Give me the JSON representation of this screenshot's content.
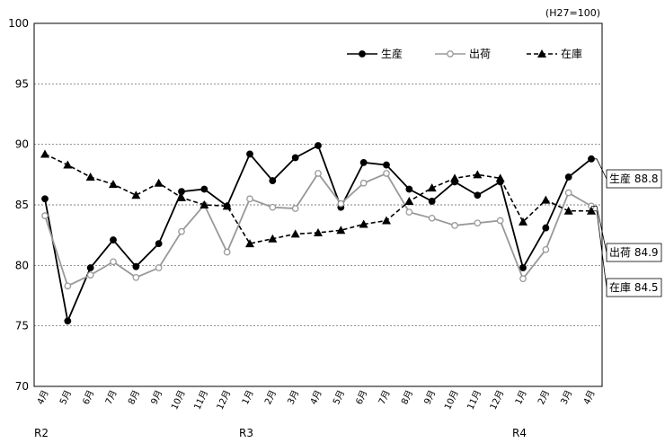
{
  "chart_data": {
    "type": "line",
    "unit_note": "(H27=100)",
    "ylim": [
      70,
      100
    ],
    "yticks": [
      "70",
      "75",
      "80",
      "85",
      "90",
      "95",
      "100"
    ],
    "grid": true,
    "legend_position": "top-right",
    "categories": [
      "4月",
      "5月",
      "6月",
      "7月",
      "8月",
      "9月",
      "10月",
      "11月",
      "12月",
      "1月",
      "2月",
      "3月",
      "4月",
      "5月",
      "6月",
      "7月",
      "8月",
      "9月",
      "10月",
      "11月",
      "12月",
      "1月",
      "2月",
      "3月",
      "4月"
    ],
    "eras": [
      {
        "label": "R2",
        "index": 0
      },
      {
        "label": "R3",
        "index": 9
      },
      {
        "label": "R4",
        "index": 21
      }
    ],
    "series": [
      {
        "name": "生産",
        "color": "#000000",
        "style": "solid",
        "marker": "filled-circle",
        "values": [
          85.5,
          75.4,
          79.8,
          82.1,
          79.9,
          81.8,
          86.1,
          86.3,
          84.9,
          89.2,
          87.0,
          88.9,
          89.9,
          84.8,
          88.5,
          88.3,
          86.3,
          85.3,
          86.9,
          85.8,
          86.9,
          79.8,
          83.1,
          87.3,
          88.8
        ],
        "end_label": "生産 88.8"
      },
      {
        "name": "出荷",
        "color": "#999999",
        "style": "solid",
        "marker": "open-circle",
        "values": [
          84.1,
          78.3,
          79.2,
          80.3,
          79.0,
          79.8,
          82.8,
          85.0,
          81.1,
          85.5,
          84.8,
          84.7,
          87.6,
          85.1,
          86.8,
          87.6,
          84.4,
          83.9,
          83.3,
          83.5,
          83.7,
          78.9,
          81.3,
          86.0,
          84.9
        ],
        "end_label": "出荷 84.9"
      },
      {
        "name": "在庫",
        "color": "#000000",
        "style": "dashed",
        "marker": "filled-triangle",
        "values": [
          89.2,
          88.3,
          87.3,
          86.7,
          85.8,
          86.8,
          85.6,
          85.0,
          84.9,
          81.8,
          82.2,
          82.6,
          82.7,
          82.9,
          83.4,
          83.7,
          85.3,
          86.4,
          87.2,
          87.5,
          87.2,
          83.6,
          85.4,
          84.5,
          84.5
        ],
        "end_label": "在庫 84.5"
      }
    ]
  }
}
